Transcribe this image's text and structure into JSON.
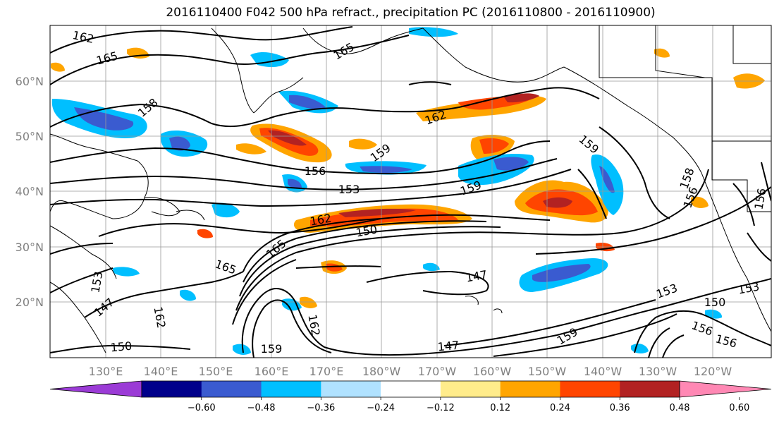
{
  "title": "2016110400 F042 500 hPa refract., precipitation PC (2016110800 - 2016110900)",
  "map": {
    "lat_labels": [
      "60°N",
      "50°N",
      "40°N",
      "30°N",
      "20°N"
    ],
    "lon_labels": [
      "130°E",
      "140°E",
      "150°E",
      "160°E",
      "170°E",
      "180°W",
      "170°W",
      "160°W",
      "150°W",
      "140°W",
      "130°W",
      "120°W"
    ],
    "contour_labels": [
      "162",
      "165",
      "165",
      "158",
      "162",
      "159",
      "156",
      "153",
      "159",
      "159",
      "162",
      "150",
      "165",
      "165",
      "147",
      "153",
      "147",
      "162",
      "150",
      "162",
      "147",
      "159",
      "153",
      "150",
      "153",
      "156",
      "156",
      "158",
      "156",
      "156",
      "159"
    ]
  },
  "colorbar": {
    "ticks": [
      "−0.60",
      "−0.48",
      "−0.36",
      "−0.24",
      "−0.12",
      "0.12",
      "0.24",
      "0.36",
      "0.48",
      "0.60"
    ],
    "colors": [
      "#9b3bd6",
      "#00008b",
      "#3a5bd0",
      "#00bfff",
      "#b0e2ff",
      "#ffffff",
      "#ffec8b",
      "#ffa500",
      "#ff4500",
      "#b22222",
      "#ff88b4"
    ]
  }
}
